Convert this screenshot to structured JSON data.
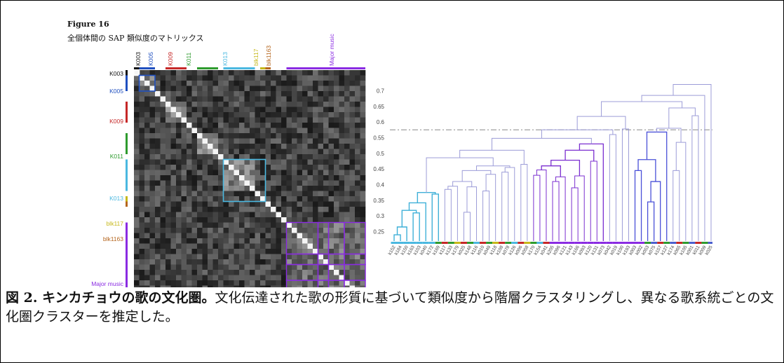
{
  "figure": {
    "title": "Figure 16",
    "subtitle": "全個体間の SAP 類似度のマトリックス"
  },
  "matrix": {
    "top_labels": [
      {
        "text": "K003",
        "color": "#111111"
      },
      {
        "text": "K005",
        "color": "#1f4fbf"
      },
      {
        "text": "K009",
        "color": "#c62828"
      },
      {
        "text": "K011",
        "color": "#2e9b2e"
      },
      {
        "text": "K013",
        "color": "#4ab8e0"
      },
      {
        "text": "blk117",
        "color": "#c6b81a"
      },
      {
        "text": "blk1163",
        "color": "#b5651d"
      },
      {
        "text": "Major music",
        "color": "#8a2be2"
      }
    ],
    "left_labels": [
      {
        "text": "K003",
        "color": "#111111"
      },
      {
        "text": "K005",
        "color": "#1f4fbf"
      },
      {
        "text": "K009",
        "color": "#c62828"
      },
      {
        "text": "K011",
        "color": "#2e9b2e"
      },
      {
        "text": "K013",
        "color": "#4ab8e0"
      },
      {
        "text": "blk117",
        "color": "#c6b81a"
      },
      {
        "text": "blk1163",
        "color": "#b5651d"
      },
      {
        "text": "Major music",
        "color": "#8a2be2"
      }
    ]
  },
  "chart_data": {
    "type": "dendrogram",
    "y_ticks": [
      0.25,
      0.3,
      0.35,
      0.4,
      0.45,
      0.5,
      0.55,
      0.6,
      0.65,
      0.7
    ],
    "ylim": [
      0.22,
      0.73
    ],
    "threshold": 0.575,
    "leaves": [
      "k152",
      "k184",
      "k150",
      "k163",
      "k103",
      "k040",
      "k172",
      "k169",
      "k117",
      "k133",
      "k179",
      "k025",
      "k148",
      "k116",
      "k010",
      "k049",
      "k118",
      "k108",
      "k078",
      "k126",
      "k006",
      "k058",
      "k170",
      "k154",
      "k041",
      "k205",
      "k096",
      "k121",
      "k143",
      "k166",
      "k093",
      "k120",
      "k131",
      "k073",
      "k042",
      "k019",
      "k100",
      "k193",
      "k003",
      "k002",
      "k053",
      "k075",
      "k157",
      "k127",
      "k174",
      "k065",
      "k105",
      "k001",
      "k011",
      "k009",
      "k025"
    ],
    "legend": "",
    "grid": false
  },
  "caption": {
    "lead": "図 2. キンカチョウの歌の文化圏。",
    "body": "文化伝達された歌の形質に基づいて類似度から階層クラスタリングし、異なる歌系統ごとの文化圏クラスターを推定した。"
  }
}
